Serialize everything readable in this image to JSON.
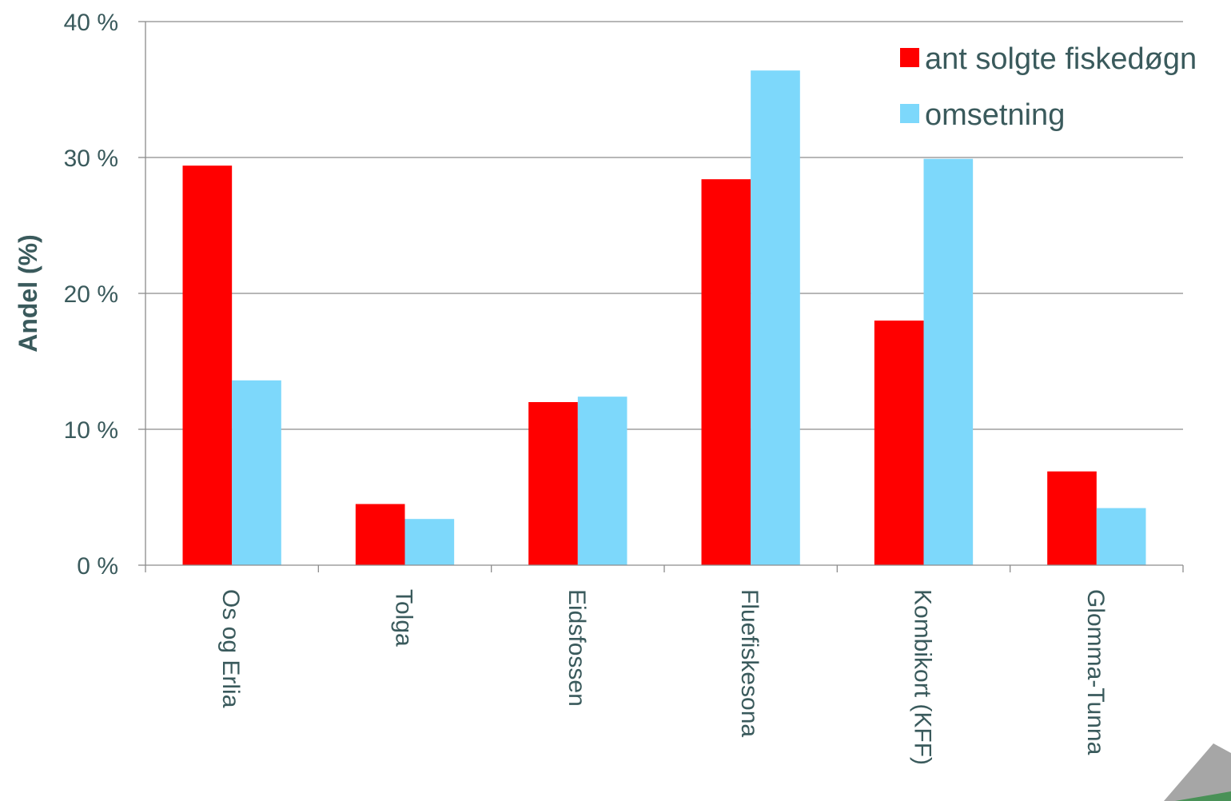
{
  "chart_data": {
    "type": "bar",
    "title": "",
    "xlabel": "",
    "ylabel": "Andel (%)",
    "ylim": [
      0,
      40
    ],
    "yticks": [
      0,
      10,
      20,
      30,
      40
    ],
    "ytick_suffix": " %",
    "grid": true,
    "legend_position": "top-right",
    "categories": [
      "Os og Erlia",
      "Tolga",
      "Eidsfossen",
      "Fluefiskesona",
      "Kombikort (KFF)",
      "Glomma-Tunna"
    ],
    "series": [
      {
        "name": "ant solgte fiskedøgn",
        "color": "#ff0000",
        "values": [
          29.4,
          4.5,
          12.0,
          28.4,
          18.0,
          6.9
        ]
      },
      {
        "name": "omsetning",
        "color": "#7dd8fb",
        "values": [
          13.6,
          3.4,
          12.4,
          36.4,
          29.9,
          4.2
        ]
      }
    ]
  },
  "logo": {
    "icon": "triangle-logo-icon"
  }
}
